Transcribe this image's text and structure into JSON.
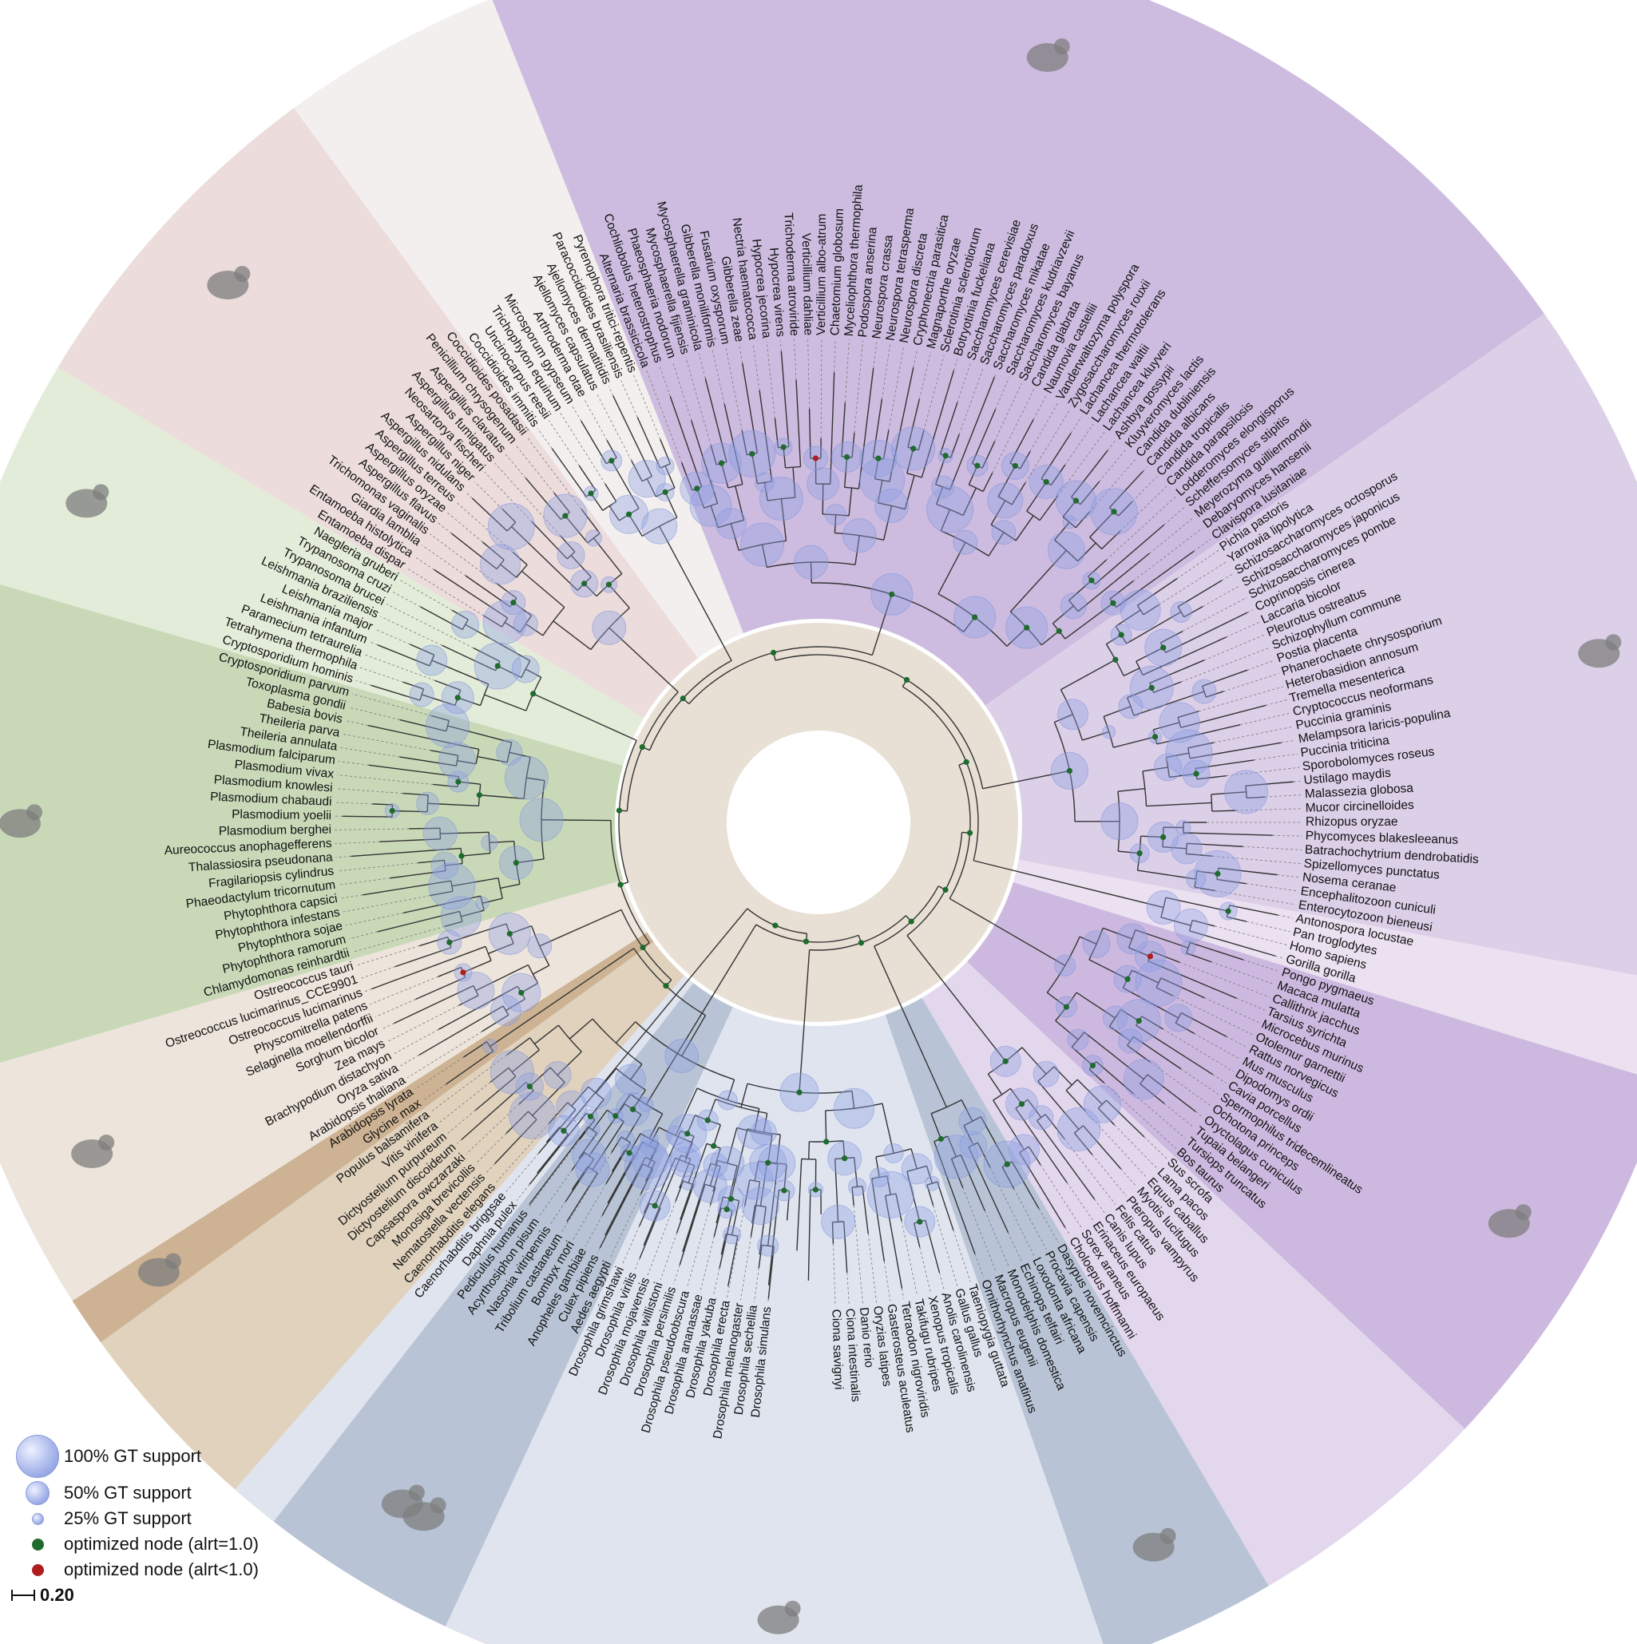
{
  "colors": {
    "background": "#ffffff",
    "eukaryote_ring": "#e8e0d5",
    "optimized_full": "#1f6b2e",
    "optimized_partial": "#b01d1d",
    "bubble": "#9aaae4"
  },
  "clades": [
    {
      "id": "metazoa-arthropoda",
      "start": 0,
      "end": 30,
      "color": "#e0d2bd",
      "icon": "insect-silhouette-icon"
    },
    {
      "id": "nematoda",
      "start": 30,
      "end": 32,
      "color": "#cdb393",
      "icon": "worm-hook-icon"
    },
    {
      "id": "basal-holozoa-amoebozoa",
      "start": 32,
      "end": 42,
      "color": "#ede4db",
      "icon": "slime-mold-icon"
    },
    {
      "id": "viridiplantae",
      "start": 42,
      "end": 62,
      "color": "#c9d9b8",
      "icon": "plant-silhouette-icon"
    },
    {
      "id": "stramenopiles",
      "start": 62,
      "end": 71,
      "color": "#e3ecd8",
      "icon": "diatom-icon"
    },
    {
      "id": "alveolata",
      "start": 71,
      "end": 85,
      "color": "#ecdcdc",
      "icon": "plasmodium-icon"
    },
    {
      "id": "excavata",
      "start": 85,
      "end": 94,
      "color": "#f3efee",
      "icon": ""
    },
    {
      "id": "ascomycota-pezizomycotina",
      "start": 94,
      "end": 141,
      "color": "#cdbce0",
      "icon": "conidiophore-icon"
    },
    {
      "id": "saccharomycotina",
      "start": 141,
      "end": 169,
      "color": "#dccfe8",
      "icon": "yeast-icon"
    },
    {
      "id": "taphrinomycotina",
      "start": 169,
      "end": 173,
      "color": "#ebe1f0",
      "icon": ""
    },
    {
      "id": "basidiomycota",
      "start": 173,
      "end": 189,
      "color": "#cdb9df",
      "icon": "mushroom-icon"
    },
    {
      "id": "early-fungi",
      "start": 189,
      "end": 199,
      "color": "#e3d7ed",
      "icon": ""
    },
    {
      "id": "primates",
      "start": 199,
      "end": 206,
      "color": "#b8c4d6",
      "icon": "gorilla-icon"
    },
    {
      "id": "mammalia",
      "start": 206,
      "end": 233,
      "color": "#dfe4ef",
      "icon": "rat-icon"
    },
    {
      "id": "fish",
      "start": 233,
      "end": 241,
      "color": "#b8c4d6",
      "icon": "fish-icon"
    },
    {
      "id": "urochordata",
      "start": 241,
      "end": 243,
      "color": "#dfe4ef",
      "icon": ""
    }
  ],
  "leaves": [
    "Drosophila simulans",
    "Drosophila sechellia",
    "Drosophila melanogaster",
    "Drosophila erecta",
    "Drosophila yakuba",
    "Drosophila ananassae",
    "Drosophila pseudoobscura",
    "Drosophila persimilis",
    "Drosophila willistoni",
    "Drosophila mojavensis",
    "Drosophila virilis",
    "Drosophila grimshawi",
    "Aedes aegypti",
    "Culex pipiens",
    "Anopheles gambiae",
    "Bombyx mori",
    "Tribolium castaneum",
    "Nasonia vitripennis",
    "Acyrthosiphon pisum",
    "Pediculus humanus",
    "Daphnia pulex",
    "Caenorhabditis briggsae",
    "Caenorhabditis elegans",
    "Nematostella vectensis",
    "Monosiga brevicollis",
    "Capsaspora owczarzaki",
    "Dictyostelium discoideum",
    "Dictyostelium purpureum",
    "Vitis vinifera",
    "Populus balsamifera",
    "Glycine max",
    "Arabidopsis lyrata",
    "Arabidopsis thaliana",
    "Oryza sativa",
    "Brachypodium distachyon",
    "Zea mays",
    "Sorghum bicolor",
    "Selaginella moellendorffii",
    "Physcomitrella patens",
    "Ostreococcus lucimarinus",
    "Ostreococcus lucimarinus_CCE9901",
    "Ostreococcus tauri",
    "Chlamydomonas reinhardtii",
    "Phytophthora ramorum",
    "Phytophthora sojae",
    "Phytophthora infestans",
    "Phytophthora capsici",
    "Phaeodactylum tricornutum",
    "Fragilariopsis cylindrus",
    "Thalassiosira pseudonana",
    "Aureococcus anophagefferens",
    "Plasmodium berghei",
    "Plasmodium yoelii",
    "Plasmodium chabaudi",
    "Plasmodium knowlesi",
    "Plasmodium vivax",
    "Plasmodium falciparum",
    "Theileria annulata",
    "Theileria parva",
    "Babesia bovis",
    "Toxoplasma gondii",
    "Cryptosporidium parvum",
    "Cryptosporidium hominis",
    "Tetrahymena thermophila",
    "Paramecium tetraurelia",
    "Leishmania infantum",
    "Leishmania major",
    "Leishmania braziliensis",
    "Trypanosoma brucei",
    "Trypanosoma cruzi",
    "Naegleria gruberi",
    "Entamoeba dispar",
    "Entamoeba histolytica",
    "Giardia lamblia",
    "Trichomonas vaginalis",
    "Aspergillus flavus",
    "Aspergillus oryzae",
    "Aspergillus terreus",
    "Aspergillus nidulans",
    "Aspergillus niger",
    "Neosartorya fischeri",
    "Aspergillus fumigatus",
    "Aspergillus clavatus",
    "Penicillium chrysogenum",
    "Coccidioides posadasii",
    "Coccidioides immitis",
    "Uncinocarpus reesii",
    "Trichophyton equinum",
    "Microsporum gypseum",
    "Arthroderma otae",
    "Ajellomyces capsulatus",
    "Ajellomyces dermatitidis",
    "Paracoccidioides brasiliensis",
    "Pyrenophora tritici-repentis",
    "Alternaria brassicicola",
    "Cochliobolus heterostrophus",
    "Phaeosphaeria nodorum",
    "Mycosphaerella fijiensis",
    "Mycosphaerella graminicola",
    "Gibberella moniliformis",
    "Fusarium oxysporum",
    "Gibberella zeae",
    "Nectria haematococca",
    "Hypocrea jecorina",
    "Hypocrea virens",
    "Trichoderma atroviride",
    "Verticillium dahliae",
    "Verticillium albo-atrum",
    "Chaetomium globosum",
    "Myceliophthora thermophila",
    "Podospora anserina",
    "Neurospora crassa",
    "Neurospora tetrasperma",
    "Neurospora discreta",
    "Cryphonectria parasitica",
    "Magnaporthe oryzae",
    "Sclerotinia sclerotiorum",
    "Botryotinia fuckeliana",
    "Saccharomyces cerevisiae",
    "Saccharomyces paradoxus",
    "Saccharomyces mikatae",
    "Saccharomyces kudriavzevii",
    "Saccharomyces bayanus",
    "Candida glabrata",
    "Naumovia castellii",
    "Vanderwaltozyma polyspora",
    "Zygosaccharomyces rouxii",
    "Lachancea thermotolerans",
    "Lachancea waltii",
    "Lachancea kluyveri",
    "Ashbya gossypii",
    "Kluyveromyces lactis",
    "Candida dubliniensis",
    "Candida albicans",
    "Candida tropicalis",
    "Candida parapsilosis",
    "Lodderomyces elongisporus",
    "Scheffersomyces stipitis",
    "Meyerozyma guilliermondii",
    "Debaryomyces hansenii",
    "Clavispora lusitaniae",
    "Pichia pastoris",
    "Yarrowia lipolytica",
    "Schizosaccharomyces octosporus",
    "Schizosaccharomyces japonicus",
    "Schizosaccharomyces pombe",
    "Coprinopsis cinerea",
    "Laccaria bicolor",
    "Pleurotus ostreatus",
    "Schizophyllum commune",
    "Postia placenta",
    "Phanerochaete chrysosporium",
    "Heterobasidion annosum",
    "Tremella mesenterica",
    "Cryptococcus neoformans",
    "Puccinia graminis",
    "Melampsora laricis-populina",
    "Puccinia triticina",
    "Sporobolomyces roseus",
    "Ustilago maydis",
    "Malassezia globosa",
    "Mucor circinelloides",
    "Rhizopus oryzae",
    "Phycomyces blakesleeanus",
    "Batrachochytrium dendrobatidis",
    "Spizellomyces punctatus",
    "Nosema ceranae",
    "Encephalitozoon cuniculi",
    "Enterocytozoon bieneusi",
    "Antonospora locustae",
    "Pan troglodytes",
    "Homo sapiens",
    "Gorilla gorilla",
    "Pongo pygmaeus",
    "Macaca mulatta",
    "Callithrix jacchus",
    "Tarsius syrichta",
    "Microcebus murinus",
    "Otolemur garnettii",
    "Rattus norvegicus",
    "Mus musculus",
    "Dipodomys ordii",
    "Cavia porcellus",
    "Spermophilus tridecemlineatus",
    "Ochotona princeps",
    "Oryctolagus cuniculus",
    "Tupaia belangeri",
    "Tursiops truncatus",
    "Bos taurus",
    "Sus scrofa",
    "Lama pacos",
    "Equus caballus",
    "Myotis lucifugus",
    "Pteropus vampyrus",
    "Felis catus",
    "Canis lupus",
    "Erinaceus europaeus",
    "Sorex araneus",
    "Choloepus hoffmanni",
    "Dasypus novemcinctus",
    "Procavia capensis",
    "Loxodonta africana",
    "Echinops telfairi",
    "Monodelphis domestica",
    "Macropus eugenii",
    "Ornithorhynchus anatinus",
    "Taeniopygia guttata",
    "Gallus gallus",
    "Anolis carolinensis",
    "Xenopus tropicalis",
    "Takifugu rubripes",
    "Tetraodon nigroviridis",
    "Gasterosteus aculeatus",
    "Oryzias latipes",
    "Danio rerio",
    "Ciona intestinalis",
    "Ciona savignyi"
  ],
  "legend": {
    "gt100": "100% GT support",
    "gt50": "50% GT support",
    "gt25": "25% GT support",
    "opt_full": "optimized node (alrt=1.0)",
    "opt_partial": "optimized node (alrt<1.0)",
    "scale": "0.20"
  }
}
